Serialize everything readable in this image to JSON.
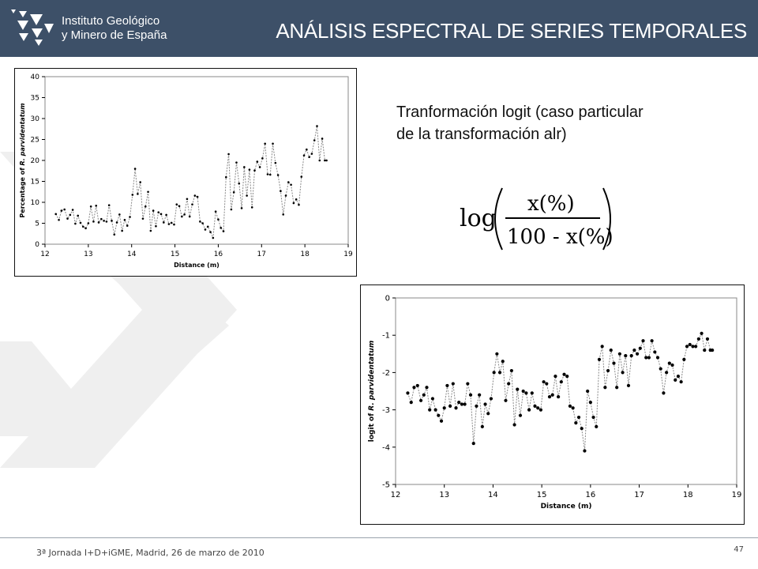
{
  "header": {
    "logo_line1": "Instituto Geológico",
    "logo_line2": "y Minero de España",
    "title": "ANÁLISIS ESPECTRAL DE SERIES TEMPORALES"
  },
  "colors": {
    "header_bg": "#3d5068",
    "chevron": "#eeeeee"
  },
  "body_text": {
    "line1": "Tranformación logit (caso particular",
    "line2": "de la transformación alr)"
  },
  "formula": {
    "prefix": "log",
    "numerator": "x(%)",
    "denominator": "100 - x(%)"
  },
  "footer": {
    "text": "3ª Jornada I+D+iGME, Madrid, 26 de marzo de 2010",
    "page_number": "47"
  },
  "chart_data": [
    {
      "type": "line",
      "xlabel": "Distance (m)",
      "ylabel_prefix": "Percentage of ",
      "ylabel_species": "R. parvidentatum",
      "xlim": [
        12,
        19
      ],
      "ylim": [
        0,
        40
      ],
      "xticks": [
        "12",
        "13",
        "14",
        "15",
        "16",
        "17",
        "18",
        "19"
      ],
      "yticks": [
        "0",
        "5",
        "10",
        "15",
        "20",
        "25",
        "30",
        "35",
        "40"
      ],
      "series": [
        {
          "x": [
            12.25,
            12.32,
            12.38,
            12.45,
            12.52,
            12.58,
            12.64,
            12.7,
            12.76,
            12.82,
            12.88,
            12.94,
            13.0,
            13.06,
            13.12,
            13.18,
            13.24,
            13.3,
            13.36,
            13.42,
            13.48,
            13.54,
            13.6,
            13.66,
            13.72,
            13.78,
            13.84,
            13.9,
            13.96,
            14.02,
            14.08,
            14.14,
            14.2,
            14.26,
            14.32,
            14.38,
            14.44,
            14.5,
            14.56,
            14.62,
            14.68,
            14.74,
            14.8,
            14.86,
            14.92,
            14.98,
            15.04,
            15.1,
            15.16,
            15.22,
            15.28,
            15.34,
            15.4,
            15.46,
            15.52,
            15.58,
            15.64,
            15.7,
            15.76,
            15.82,
            15.88,
            15.94,
            16.0,
            16.06,
            16.12,
            16.18,
            16.24,
            16.3,
            16.36,
            16.42,
            16.48,
            16.54,
            16.6,
            16.66,
            16.72,
            16.78,
            16.84,
            16.9,
            16.96,
            17.02,
            17.08,
            17.14,
            17.2,
            17.26,
            17.32,
            17.38,
            17.44,
            17.5,
            17.56,
            17.62,
            17.68,
            17.74,
            17.8,
            17.86,
            17.92,
            17.98,
            18.04,
            18.1,
            18.16,
            18.22,
            18.28,
            18.34,
            18.4,
            18.46,
            18.5
          ],
          "y": [
            7.2,
            5.8,
            8.0,
            8.3,
            6.1,
            7.0,
            8.2,
            4.9,
            6.8,
            5.1,
            4.2,
            3.8,
            5.0,
            9.0,
            5.4,
            9.2,
            5.2,
            6.0,
            5.6,
            5.4,
            9.3,
            5.6,
            2.3,
            5.2,
            7.1,
            3.2,
            5.8,
            4.4,
            6.5,
            11.8,
            18.0,
            12.0,
            14.8,
            6.1,
            9.0,
            12.5,
            3.2,
            8.0,
            4.3,
            7.6,
            7.2,
            5.2,
            7.0,
            4.8,
            5.1,
            4.7,
            9.5,
            9.1,
            6.6,
            7.1,
            10.8,
            6.6,
            9.5,
            11.6,
            11.3,
            5.4,
            5.0,
            3.5,
            4.2,
            2.9,
            1.5,
            7.8,
            5.9,
            3.9,
            3.1,
            16.0,
            21.5,
            8.3,
            12.4,
            19.5,
            14.5,
            8.6,
            18.4,
            11.6,
            17.8,
            8.8,
            17.6,
            19.7,
            18.4,
            20.5,
            24.0,
            16.7,
            16.6,
            24.0,
            19.4,
            16.5,
            12.7,
            7.1,
            11.6,
            14.8,
            14.2,
            9.8,
            10.7,
            9.4,
            16.1,
            21.2,
            22.6,
            20.8,
            21.6,
            24.8,
            28.2,
            20.0,
            25.2,
            20.0,
            20.0
          ]
        }
      ]
    },
    {
      "type": "line",
      "xlabel": "Distance (m)",
      "ylabel_prefix": "logit of ",
      "ylabel_species": "R. parvidentatum",
      "xlim": [
        12,
        19
      ],
      "ylim": [
        -5,
        0
      ],
      "xticks": [
        "12",
        "13",
        "14",
        "15",
        "16",
        "17",
        "18",
        "19"
      ],
      "yticks": [
        "0",
        "-1",
        "-2",
        "-3",
        "-4",
        "-5"
      ],
      "series": [
        {
          "x": [
            12.25,
            12.32,
            12.38,
            12.45,
            12.52,
            12.58,
            12.64,
            12.7,
            12.76,
            12.82,
            12.88,
            12.94,
            13.0,
            13.06,
            13.12,
            13.18,
            13.24,
            13.3,
            13.36,
            13.42,
            13.48,
            13.54,
            13.6,
            13.66,
            13.72,
            13.78,
            13.84,
            13.9,
            13.96,
            14.02,
            14.08,
            14.14,
            14.2,
            14.26,
            14.32,
            14.38,
            14.44,
            14.5,
            14.56,
            14.62,
            14.68,
            14.74,
            14.8,
            14.86,
            14.92,
            14.98,
            15.04,
            15.1,
            15.16,
            15.22,
            15.28,
            15.34,
            15.4,
            15.46,
            15.52,
            15.58,
            15.64,
            15.7,
            15.76,
            15.82,
            15.88,
            15.94,
            16.0,
            16.06,
            16.12,
            16.18,
            16.24,
            16.3,
            16.36,
            16.42,
            16.48,
            16.54,
            16.6,
            16.66,
            16.72,
            16.78,
            16.84,
            16.9,
            16.96,
            17.02,
            17.08,
            17.14,
            17.2,
            17.26,
            17.32,
            17.38,
            17.44,
            17.5,
            17.56,
            17.62,
            17.68,
            17.74,
            17.8,
            17.86,
            17.92,
            17.98,
            18.04,
            18.1,
            18.16,
            18.22,
            18.28,
            18.34,
            18.4,
            18.46,
            18.5
          ],
          "y": [
            -2.55,
            -2.8,
            -2.4,
            -2.35,
            -2.75,
            -2.6,
            -2.4,
            -3.0,
            -2.7,
            -3.0,
            -3.15,
            -3.3,
            -2.95,
            -2.35,
            -2.9,
            -2.3,
            -2.95,
            -2.8,
            -2.85,
            -2.85,
            -2.3,
            -2.6,
            -3.9,
            -2.9,
            -2.6,
            -3.45,
            -2.85,
            -3.1,
            -2.7,
            -2.0,
            -1.5,
            -2.0,
            -1.7,
            -2.75,
            -2.3,
            -1.95,
            -3.4,
            -2.45,
            -3.15,
            -2.5,
            -2.55,
            -3.0,
            -2.55,
            -2.9,
            -2.95,
            -3.0,
            -2.25,
            -2.3,
            -2.65,
            -2.6,
            -2.1,
            -2.65,
            -2.25,
            -2.05,
            -2.1,
            -2.9,
            -2.95,
            -3.35,
            -3.2,
            -3.5,
            -4.1,
            -2.5,
            -2.8,
            -3.2,
            -3.45,
            -1.65,
            -1.3,
            -2.4,
            -1.95,
            -1.4,
            -1.75,
            -2.4,
            -1.5,
            -2.0,
            -1.55,
            -2.35,
            -1.55,
            -1.4,
            -1.5,
            -1.35,
            -1.15,
            -1.6,
            -1.6,
            -1.15,
            -1.45,
            -1.6,
            -1.9,
            -2.55,
            -2.0,
            -1.75,
            -1.8,
            -2.2,
            -2.1,
            -2.25,
            -1.65,
            -1.3,
            -1.25,
            -1.3,
            -1.3,
            -1.1,
            -0.95,
            -1.4,
            -1.1,
            -1.4,
            -1.4
          ]
        }
      ]
    }
  ]
}
